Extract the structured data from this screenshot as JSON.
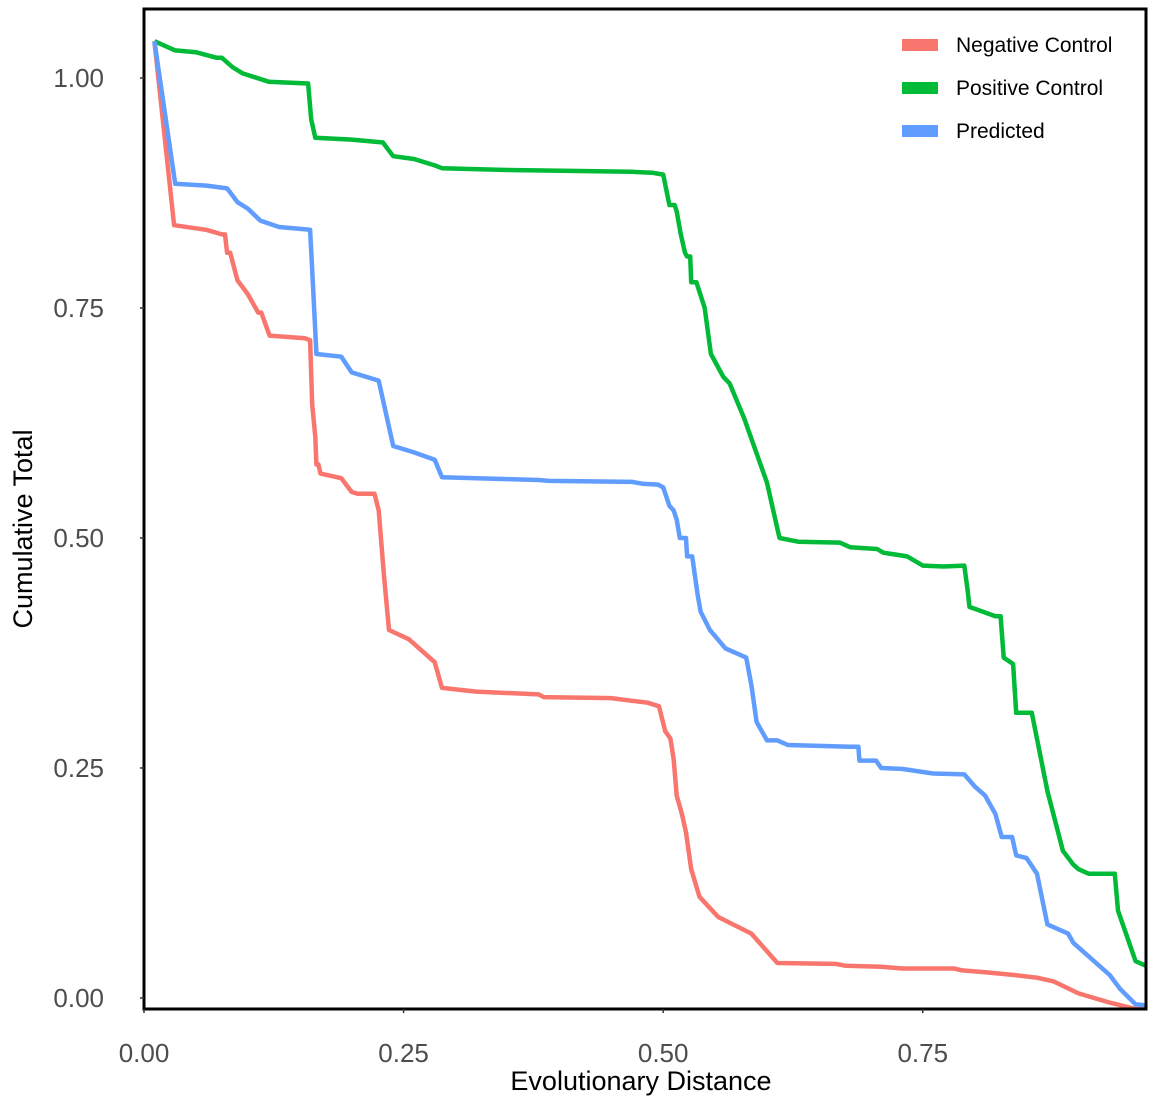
{
  "chart_data": {
    "type": "line",
    "xlabel": "Evolutionary Distance",
    "ylabel": "Cumulative Total",
    "xlim": [
      0.0,
      0.965
    ],
    "ylim": [
      -0.012,
      1.075
    ],
    "x_ticks": [
      0.0,
      0.25,
      0.5,
      0.75
    ],
    "x_tick_labels": [
      "0.00",
      "0.25",
      "0.50",
      "0.75"
    ],
    "y_ticks": [
      0.0,
      0.25,
      0.5,
      0.75,
      1.0
    ],
    "y_tick_labels": [
      "0.00",
      "0.25",
      "0.50",
      "0.75",
      "1.00"
    ],
    "grid": false,
    "legend_position": "top-right",
    "series": [
      {
        "name": "Negative Control",
        "color": "#F8766D",
        "points": [
          [
            0.01,
            1.04
          ],
          [
            0.029,
            0.84
          ],
          [
            0.06,
            0.835
          ],
          [
            0.075,
            0.83
          ],
          [
            0.078,
            0.83
          ],
          [
            0.08,
            0.81
          ],
          [
            0.083,
            0.81
          ],
          [
            0.09,
            0.78
          ],
          [
            0.1,
            0.765
          ],
          [
            0.11,
            0.745
          ],
          [
            0.113,
            0.745
          ],
          [
            0.121,
            0.72
          ],
          [
            0.155,
            0.717
          ],
          [
            0.16,
            0.715
          ],
          [
            0.162,
            0.645
          ],
          [
            0.165,
            0.61
          ],
          [
            0.166,
            0.58
          ],
          [
            0.168,
            0.58
          ],
          [
            0.17,
            0.57
          ],
          [
            0.19,
            0.565
          ],
          [
            0.2,
            0.55
          ],
          [
            0.206,
            0.548
          ],
          [
            0.222,
            0.548
          ],
          [
            0.226,
            0.53
          ],
          [
            0.231,
            0.46
          ],
          [
            0.236,
            0.4
          ],
          [
            0.255,
            0.39
          ],
          [
            0.28,
            0.365
          ],
          [
            0.287,
            0.337
          ],
          [
            0.32,
            0.333
          ],
          [
            0.38,
            0.33
          ],
          [
            0.385,
            0.327
          ],
          [
            0.45,
            0.326
          ],
          [
            0.47,
            0.323
          ],
          [
            0.485,
            0.321
          ],
          [
            0.496,
            0.317
          ],
          [
            0.502,
            0.29
          ],
          [
            0.507,
            0.282
          ],
          [
            0.51,
            0.26
          ],
          [
            0.513,
            0.22
          ],
          [
            0.518,
            0.2
          ],
          [
            0.522,
            0.18
          ],
          [
            0.527,
            0.14
          ],
          [
            0.535,
            0.11
          ],
          [
            0.553,
            0.088
          ],
          [
            0.585,
            0.07
          ],
          [
            0.61,
            0.038
          ],
          [
            0.666,
            0.037
          ],
          [
            0.676,
            0.035
          ],
          [
            0.71,
            0.034
          ],
          [
            0.73,
            0.032
          ],
          [
            0.78,
            0.032
          ],
          [
            0.788,
            0.03
          ],
          [
            0.81,
            0.028
          ],
          [
            0.838,
            0.025
          ],
          [
            0.86,
            0.022
          ],
          [
            0.876,
            0.018
          ],
          [
            0.9,
            0.005
          ],
          [
            0.93,
            -0.005
          ],
          [
            0.955,
            -0.012
          ],
          [
            0.965,
            -0.012
          ]
        ]
      },
      {
        "name": "Positive Control",
        "color": "#00BA38",
        "points": [
          [
            0.01,
            1.04
          ],
          [
            0.03,
            1.03
          ],
          [
            0.05,
            1.028
          ],
          [
            0.07,
            1.022
          ],
          [
            0.075,
            1.022
          ],
          [
            0.085,
            1.012
          ],
          [
            0.095,
            1.005
          ],
          [
            0.12,
            0.996
          ],
          [
            0.158,
            0.994
          ],
          [
            0.161,
            0.955
          ],
          [
            0.165,
            0.935
          ],
          [
            0.2,
            0.933
          ],
          [
            0.23,
            0.93
          ],
          [
            0.24,
            0.915
          ],
          [
            0.26,
            0.912
          ],
          [
            0.28,
            0.905
          ],
          [
            0.287,
            0.902
          ],
          [
            0.35,
            0.9
          ],
          [
            0.47,
            0.898
          ],
          [
            0.49,
            0.897
          ],
          [
            0.5,
            0.895
          ],
          [
            0.506,
            0.862
          ],
          [
            0.511,
            0.862
          ],
          [
            0.513,
            0.855
          ],
          [
            0.517,
            0.83
          ],
          [
            0.521,
            0.81
          ],
          [
            0.523,
            0.806
          ],
          [
            0.526,
            0.806
          ],
          [
            0.527,
            0.778
          ],
          [
            0.532,
            0.778
          ],
          [
            0.54,
            0.75
          ],
          [
            0.546,
            0.7
          ],
          [
            0.558,
            0.675
          ],
          [
            0.564,
            0.668
          ],
          [
            0.578,
            0.63
          ],
          [
            0.6,
            0.56
          ],
          [
            0.612,
            0.5
          ],
          [
            0.63,
            0.496
          ],
          [
            0.67,
            0.495
          ],
          [
            0.68,
            0.49
          ],
          [
            0.706,
            0.488
          ],
          [
            0.712,
            0.484
          ],
          [
            0.735,
            0.48
          ],
          [
            0.75,
            0.47
          ],
          [
            0.77,
            0.469
          ],
          [
            0.79,
            0.47
          ],
          [
            0.793,
            0.445
          ],
          [
            0.795,
            0.425
          ],
          [
            0.8,
            0.423
          ],
          [
            0.82,
            0.415
          ],
          [
            0.825,
            0.415
          ],
          [
            0.828,
            0.37
          ],
          [
            0.837,
            0.363
          ],
          [
            0.84,
            0.31
          ],
          [
            0.855,
            0.31
          ],
          [
            0.87,
            0.225
          ],
          [
            0.885,
            0.16
          ],
          [
            0.895,
            0.145
          ],
          [
            0.9,
            0.14
          ],
          [
            0.91,
            0.135
          ],
          [
            0.935,
            0.135
          ],
          [
            0.938,
            0.095
          ],
          [
            0.955,
            0.04
          ],
          [
            0.965,
            0.035
          ]
        ]
      },
      {
        "name": "Predicted",
        "color": "#619CFF",
        "points": [
          [
            0.01,
            1.04
          ],
          [
            0.03,
            0.885
          ],
          [
            0.06,
            0.883
          ],
          [
            0.08,
            0.88
          ],
          [
            0.09,
            0.865
          ],
          [
            0.1,
            0.858
          ],
          [
            0.112,
            0.845
          ],
          [
            0.13,
            0.838
          ],
          [
            0.16,
            0.835
          ],
          [
            0.163,
            0.77
          ],
          [
            0.166,
            0.7
          ],
          [
            0.19,
            0.697
          ],
          [
            0.2,
            0.68
          ],
          [
            0.226,
            0.671
          ],
          [
            0.24,
            0.6
          ],
          [
            0.26,
            0.593
          ],
          [
            0.28,
            0.585
          ],
          [
            0.287,
            0.566
          ],
          [
            0.35,
            0.564
          ],
          [
            0.38,
            0.563
          ],
          [
            0.39,
            0.562
          ],
          [
            0.47,
            0.561
          ],
          [
            0.48,
            0.559
          ],
          [
            0.495,
            0.558
          ],
          [
            0.5,
            0.555
          ],
          [
            0.506,
            0.535
          ],
          [
            0.51,
            0.53
          ],
          [
            0.513,
            0.52
          ],
          [
            0.516,
            0.5
          ],
          [
            0.522,
            0.5
          ],
          [
            0.523,
            0.48
          ],
          [
            0.528,
            0.48
          ],
          [
            0.533,
            0.44
          ],
          [
            0.536,
            0.42
          ],
          [
            0.545,
            0.4
          ],
          [
            0.56,
            0.38
          ],
          [
            0.58,
            0.37
          ],
          [
            0.585,
            0.34
          ],
          [
            0.59,
            0.3
          ],
          [
            0.6,
            0.28
          ],
          [
            0.61,
            0.28
          ],
          [
            0.62,
            0.275
          ],
          [
            0.68,
            0.273
          ],
          [
            0.688,
            0.273
          ],
          [
            0.689,
            0.258
          ],
          [
            0.705,
            0.258
          ],
          [
            0.71,
            0.25
          ],
          [
            0.73,
            0.249
          ],
          [
            0.76,
            0.244
          ],
          [
            0.79,
            0.243
          ],
          [
            0.8,
            0.23
          ],
          [
            0.81,
            0.22
          ],
          [
            0.82,
            0.2
          ],
          [
            0.826,
            0.175
          ],
          [
            0.836,
            0.175
          ],
          [
            0.84,
            0.155
          ],
          [
            0.85,
            0.152
          ],
          [
            0.86,
            0.135
          ],
          [
            0.87,
            0.08
          ],
          [
            0.89,
            0.07
          ],
          [
            0.895,
            0.06
          ],
          [
            0.9,
            0.055
          ],
          [
            0.93,
            0.025
          ],
          [
            0.94,
            0.01
          ],
          [
            0.955,
            -0.007
          ],
          [
            0.965,
            -0.008
          ]
        ]
      }
    ]
  }
}
